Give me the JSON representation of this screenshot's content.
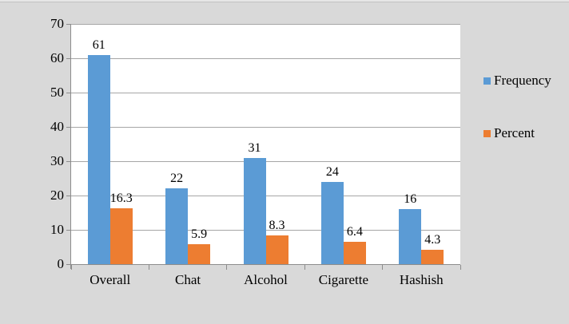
{
  "chart_data": {
    "type": "bar",
    "title": "",
    "xlabel": "",
    "ylabel": "",
    "categories": [
      "Overall",
      "Chat",
      "Alcohol",
      "Cigarette",
      "Hashish"
    ],
    "series": [
      {
        "name": "Frequency",
        "color": "#5B9BD5",
        "values": [
          61,
          22,
          31,
          24,
          16
        ],
        "labels": [
          "61",
          "22",
          "31",
          "24",
          "16"
        ]
      },
      {
        "name": "Percent",
        "color": "#ED7D31",
        "values": [
          16.3,
          5.9,
          8.3,
          6.4,
          4.3
        ],
        "labels": [
          "16.3",
          "5.9",
          "8.3",
          "6.4",
          "4.3"
        ]
      }
    ],
    "ylim": [
      0,
      70
    ],
    "yticks": [
      0,
      10,
      20,
      30,
      40,
      50,
      60,
      70
    ],
    "grid": true,
    "data_labels": true,
    "legend_position": "right"
  },
  "colors": {
    "page_background": "#D9D9D9",
    "plot_background": "#FFFFFF",
    "gridline": "#A6A6A6",
    "axis_line": "#8C8C8C",
    "text": "#000000"
  }
}
